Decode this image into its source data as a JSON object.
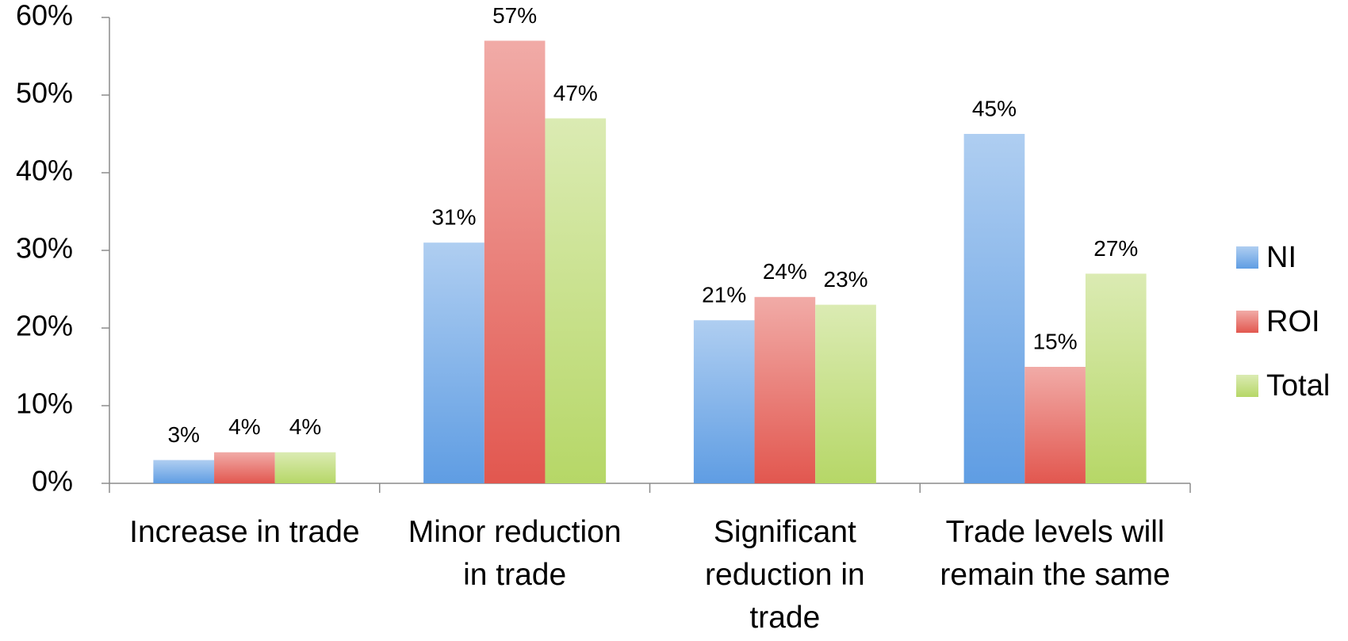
{
  "chart_data": {
    "type": "bar",
    "categories": [
      "Increase in trade",
      "Minor reduction in trade",
      "Significant reduction in trade",
      "Trade levels will remain the same"
    ],
    "series": [
      {
        "name": "NI",
        "color": "#5f9de3",
        "values": [
          3,
          31,
          21,
          45
        ],
        "value_labels": [
          "3%",
          "31%",
          "21%",
          "45%"
        ]
      },
      {
        "name": "ROI",
        "color": "#e2574f",
        "values": [
          4,
          57,
          24,
          15
        ],
        "value_labels": [
          "4%",
          "57%",
          "24%",
          "15%"
        ]
      },
      {
        "name": "Total",
        "color": "#b6d767",
        "values": [
          4,
          47,
          23,
          27
        ],
        "value_labels": [
          "4%",
          "47%",
          "23%",
          "27%"
        ]
      }
    ],
    "ylim": [
      0,
      60
    ],
    "yticks": [
      {
        "value": 0,
        "label": "0%"
      },
      {
        "value": 10,
        "label": "10%"
      },
      {
        "value": 20,
        "label": "20%"
      },
      {
        "value": 30,
        "label": "30%"
      },
      {
        "value": 40,
        "label": "40%"
      },
      {
        "value": 50,
        "label": "50%"
      },
      {
        "value": 60,
        "label": "60%"
      }
    ],
    "grid": false,
    "legend": "right"
  }
}
